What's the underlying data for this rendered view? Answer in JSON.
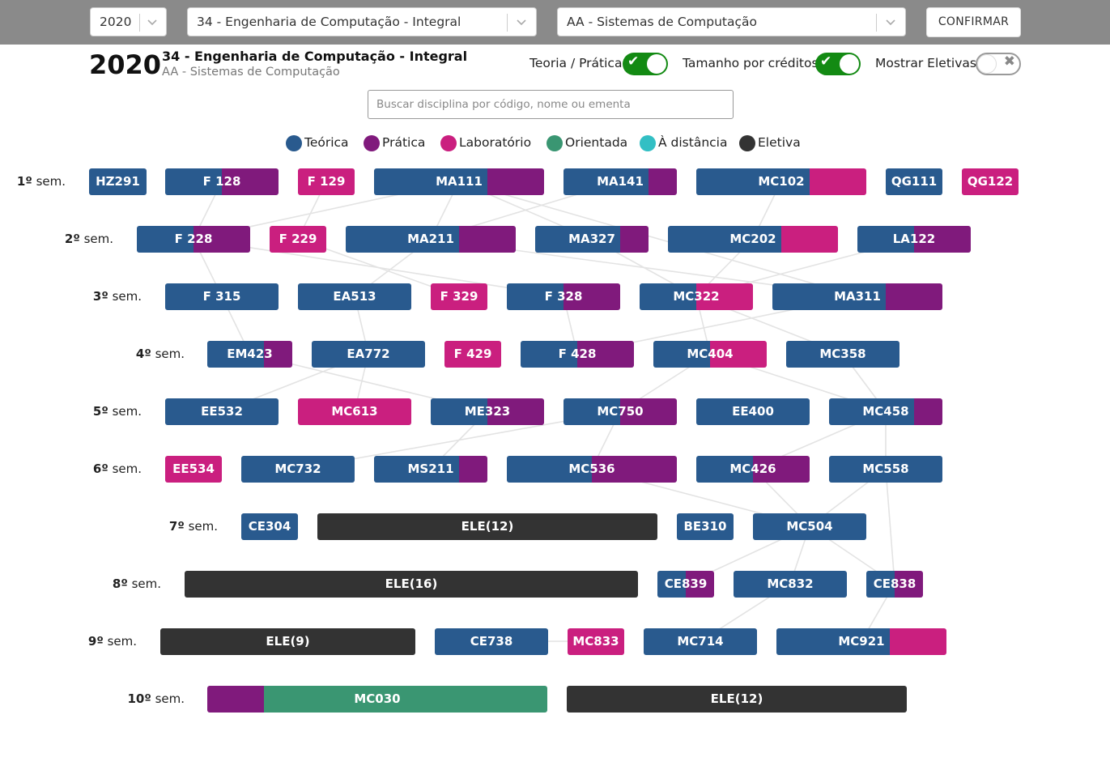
{
  "colors": {
    "teorica": "#295a8e",
    "pratica": "#801a7c",
    "laboratorio": "#ca1f7f",
    "orientada": "#3a9672",
    "distancia": "#32bfc4",
    "eletiva": "#333333"
  },
  "top_bar": {
    "year_select": {
      "value": "2020",
      "icon": "chevron-down-icon"
    },
    "course_select": {
      "value": "34 - Engenharia de Computação - Integral",
      "icon": "chevron-down-icon"
    },
    "modality_select": {
      "value": "AA - Sistemas de Computação",
      "icon": "chevron-down-icon"
    },
    "confirm_label": "CONFIRMAR"
  },
  "header": {
    "year": "2020",
    "course": "34 - Engenharia de Computação - Integral",
    "modality": "AA - Sistemas de Computação"
  },
  "toggles": [
    {
      "label": "Teoria / Prática",
      "state": "on",
      "icon": "check-icon"
    },
    {
      "label": "Tamanho por créditos",
      "state": "on",
      "icon": "check-icon"
    },
    {
      "label": "Mostrar Eletivas",
      "state": "off",
      "icon": "close-icon"
    }
  ],
  "search": {
    "placeholder": "Buscar disciplina por código, nome ou ementa",
    "value": ""
  },
  "legend": [
    {
      "label": "Teórica",
      "color": "#295a8e"
    },
    {
      "label": "Prática",
      "color": "#801a7c"
    },
    {
      "label": "Laboratório",
      "color": "#ca1f7f"
    },
    {
      "label": "Orientada",
      "color": "#3a9672"
    },
    {
      "label": "À distância",
      "color": "#32bfc4"
    },
    {
      "label": "Eletiva",
      "color": "#333333"
    }
  ],
  "semesters": [
    {
      "number": "1º",
      "suffix": " sem.",
      "courses": [
        {
          "code": "HZ291",
          "segments": [
            [
              "teorica",
              1
            ]
          ]
        },
        {
          "code": "F 128",
          "segments": [
            [
              "teorica",
              0.5
            ],
            [
              "pratica",
              0.5
            ]
          ]
        },
        {
          "code": "F 129",
          "segments": [
            [
              "laboratorio",
              1
            ]
          ]
        },
        {
          "code": "MA111",
          "segments": [
            [
              "teorica",
              0.667
            ],
            [
              "pratica",
              0.333
            ]
          ]
        },
        {
          "code": "MA141",
          "segments": [
            [
              "teorica",
              0.75
            ],
            [
              "pratica",
              0.25
            ]
          ]
        },
        {
          "code": "MC102",
          "segments": [
            [
              "teorica",
              0.667
            ],
            [
              "laboratorio",
              0.333
            ]
          ]
        },
        {
          "code": "QG111",
          "segments": [
            [
              "teorica",
              1
            ]
          ]
        },
        {
          "code": "QG122",
          "segments": [
            [
              "laboratorio",
              1
            ]
          ]
        }
      ]
    },
    {
      "number": "2º",
      "suffix": " sem.",
      "courses": [
        {
          "code": "F 228",
          "segments": [
            [
              "teorica",
              0.5
            ],
            [
              "pratica",
              0.5
            ]
          ]
        },
        {
          "code": "F 229",
          "segments": [
            [
              "laboratorio",
              1
            ]
          ]
        },
        {
          "code": "MA211",
          "segments": [
            [
              "teorica",
              0.667
            ],
            [
              "pratica",
              0.333
            ]
          ]
        },
        {
          "code": "MA327",
          "segments": [
            [
              "teorica",
              0.75
            ],
            [
              "pratica",
              0.25
            ]
          ]
        },
        {
          "code": "MC202",
          "segments": [
            [
              "teorica",
              0.667
            ],
            [
              "laboratorio",
              0.333
            ]
          ]
        },
        {
          "code": "LA122",
          "segments": [
            [
              "teorica",
              0.5
            ],
            [
              "pratica",
              0.5
            ]
          ]
        }
      ]
    },
    {
      "number": "3º",
      "suffix": " sem.",
      "courses": [
        {
          "code": "F 315",
          "segments": [
            [
              "teorica",
              1
            ]
          ]
        },
        {
          "code": "EA513",
          "segments": [
            [
              "teorica",
              1
            ]
          ]
        },
        {
          "code": "F 329",
          "segments": [
            [
              "laboratorio",
              1
            ]
          ]
        },
        {
          "code": "F 328",
          "segments": [
            [
              "teorica",
              0.5
            ],
            [
              "pratica",
              0.5
            ]
          ]
        },
        {
          "code": "MC322",
          "segments": [
            [
              "teorica",
              0.5
            ],
            [
              "laboratorio",
              0.5
            ]
          ]
        },
        {
          "code": "MA311",
          "segments": [
            [
              "teorica",
              0.667
            ],
            [
              "pratica",
              0.333
            ]
          ]
        }
      ]
    },
    {
      "number": "4º",
      "suffix": " sem.",
      "courses": [
        {
          "code": "EM423",
          "segments": [
            [
              "teorica",
              0.667
            ],
            [
              "pratica",
              0.333
            ]
          ]
        },
        {
          "code": "EA772",
          "segments": [
            [
              "teorica",
              1
            ]
          ]
        },
        {
          "code": "F 429",
          "segments": [
            [
              "laboratorio",
              1
            ]
          ]
        },
        {
          "code": "F 428",
          "segments": [
            [
              "teorica",
              0.5
            ],
            [
              "pratica",
              0.5
            ]
          ]
        },
        {
          "code": "MC404",
          "segments": [
            [
              "teorica",
              0.5
            ],
            [
              "laboratorio",
              0.5
            ]
          ]
        },
        {
          "code": "MC358",
          "segments": [
            [
              "teorica",
              1
            ]
          ]
        }
      ]
    },
    {
      "number": "5º",
      "suffix": " sem.",
      "courses": [
        {
          "code": "EE532",
          "segments": [
            [
              "teorica",
              1
            ]
          ]
        },
        {
          "code": "MC613",
          "segments": [
            [
              "laboratorio",
              1
            ]
          ]
        },
        {
          "code": "ME323",
          "segments": [
            [
              "teorica",
              0.5
            ],
            [
              "pratica",
              0.5
            ]
          ]
        },
        {
          "code": "MC750",
          "segments": [
            [
              "teorica",
              0.5
            ],
            [
              "pratica",
              0.5
            ]
          ]
        },
        {
          "code": "EE400",
          "segments": [
            [
              "teorica",
              1
            ]
          ]
        },
        {
          "code": "MC458",
          "segments": [
            [
              "teorica",
              0.75
            ],
            [
              "pratica",
              0.25
            ]
          ]
        }
      ]
    },
    {
      "number": "6º",
      "suffix": " sem.",
      "courses": [
        {
          "code": "EE534",
          "segments": [
            [
              "laboratorio",
              1
            ]
          ]
        },
        {
          "code": "MC732",
          "segments": [
            [
              "teorica",
              1
            ]
          ]
        },
        {
          "code": "MS211",
          "segments": [
            [
              "teorica",
              0.75
            ],
            [
              "pratica",
              0.25
            ]
          ]
        },
        {
          "code": "MC536",
          "segments": [
            [
              "teorica",
              0.5
            ],
            [
              "pratica",
              0.5
            ]
          ]
        },
        {
          "code": "MC426",
          "segments": [
            [
              "teorica",
              0.5
            ],
            [
              "pratica",
              0.5
            ]
          ]
        },
        {
          "code": "MC558",
          "segments": [
            [
              "teorica",
              1
            ]
          ]
        }
      ]
    },
    {
      "number": "7º",
      "suffix": " sem.",
      "courses": [
        {
          "code": "CE304",
          "segments": [
            [
              "teorica",
              1
            ]
          ]
        },
        {
          "code": "ELE(12)",
          "segments": [
            [
              "eletiva",
              1
            ]
          ]
        },
        {
          "code": "BE310",
          "segments": [
            [
              "teorica",
              1
            ]
          ]
        },
        {
          "code": "MC504",
          "segments": [
            [
              "teorica",
              1
            ]
          ]
        }
      ]
    },
    {
      "number": "8º",
      "suffix": " sem.",
      "courses": [
        {
          "code": "ELE(16)",
          "segments": [
            [
              "eletiva",
              1
            ]
          ]
        },
        {
          "code": "CE839",
          "segments": [
            [
              "teorica",
              0.5
            ],
            [
              "pratica",
              0.5
            ]
          ]
        },
        {
          "code": "MC832",
          "segments": [
            [
              "teorica",
              1
            ]
          ]
        },
        {
          "code": "CE838",
          "segments": [
            [
              "teorica",
              0.5
            ],
            [
              "pratica",
              0.5
            ]
          ]
        }
      ]
    },
    {
      "number": "9º",
      "suffix": " sem.",
      "courses": [
        {
          "code": "ELE(9)",
          "segments": [
            [
              "eletiva",
              1
            ]
          ]
        },
        {
          "code": "CE738",
          "segments": [
            [
              "teorica",
              1
            ]
          ]
        },
        {
          "code": "MC833",
          "segments": [
            [
              "laboratorio",
              1
            ]
          ]
        },
        {
          "code": "MC714",
          "segments": [
            [
              "teorica",
              1
            ]
          ]
        },
        {
          "code": "MC921",
          "segments": [
            [
              "teorica",
              0.667
            ],
            [
              "laboratorio",
              0.333
            ]
          ]
        }
      ]
    },
    {
      "number": "10º",
      "suffix": " sem.",
      "courses": [
        {
          "code": "MC030",
          "segments": [
            [
              "pratica",
              0.167
            ],
            [
              "orientada",
              0.833
            ]
          ]
        },
        {
          "code": "ELE(12)",
          "segments": [
            [
              "eletiva",
              1
            ]
          ]
        }
      ]
    }
  ]
}
